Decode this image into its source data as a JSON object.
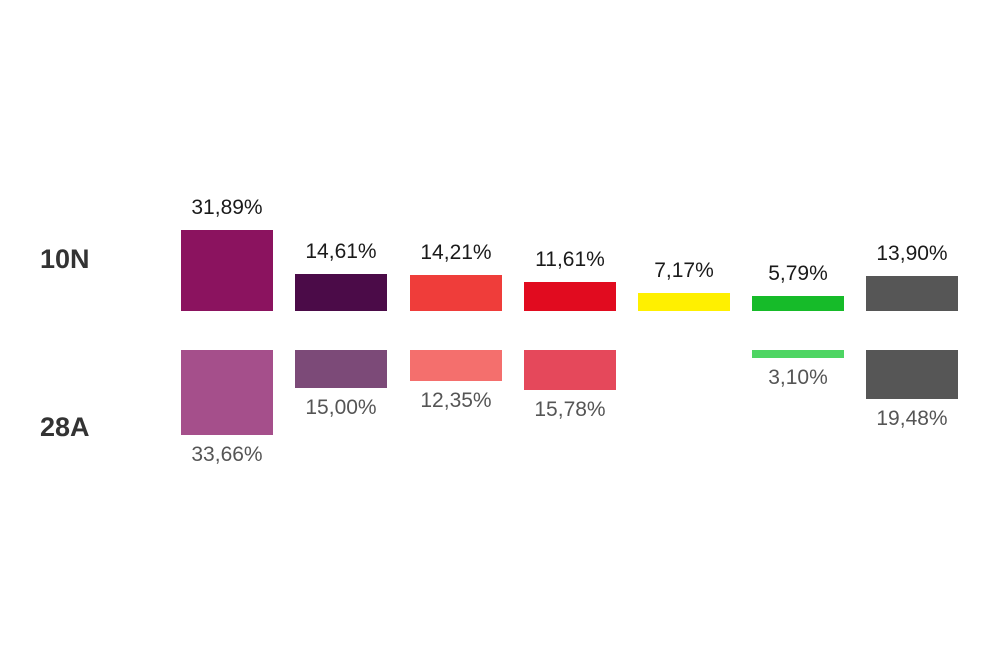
{
  "chart_data": {
    "type": "bar",
    "series": [
      {
        "name": "10N",
        "values": [
          31.89,
          14.61,
          14.21,
          11.61,
          7.17,
          5.79,
          13.9
        ],
        "labels": [
          "31,89%",
          "14,61%",
          "14,21%",
          "11,61%",
          "7,17%",
          "5,79%",
          "13,90%"
        ],
        "colors": [
          "#8b135f",
          "#4b0b48",
          "#ef3d3a",
          "#e10b1f",
          "#fff000",
          "#16bb29",
          "#565656"
        ]
      },
      {
        "name": "28A",
        "values": [
          33.66,
          15.0,
          12.35,
          15.78,
          null,
          3.1,
          19.48
        ],
        "labels": [
          "33,66%",
          "15,00%",
          "12,35%",
          "15,78%",
          "",
          "3,10%",
          "19,48%"
        ],
        "colors": [
          "#a54f8b",
          "#7c4a78",
          "#f46f6d",
          "#e5485b",
          "",
          "#4ed563",
          "#565656"
        ]
      }
    ]
  }
}
